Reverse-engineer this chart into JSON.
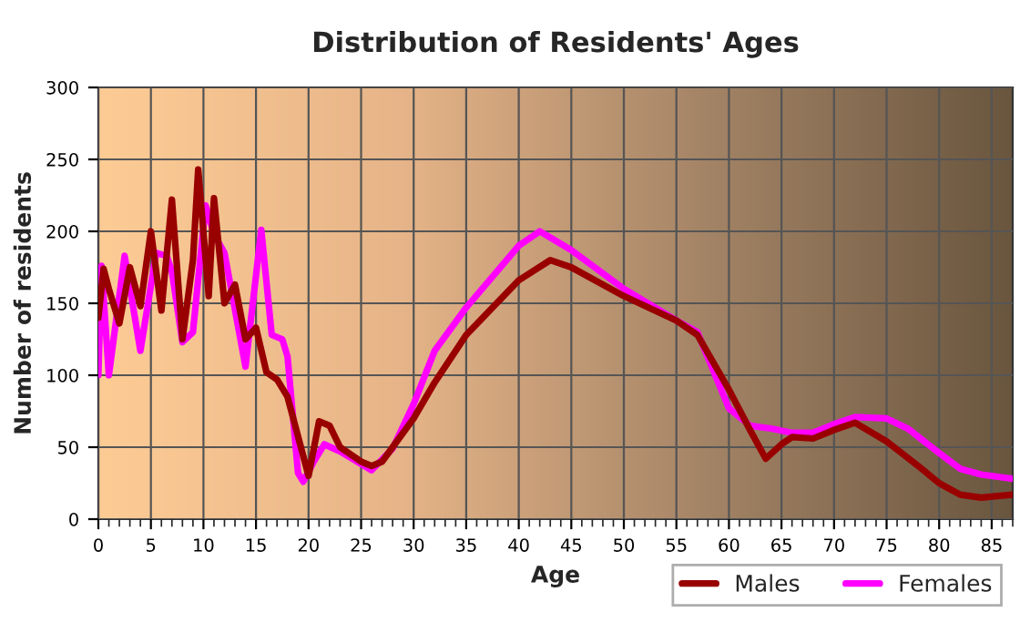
{
  "chart_data": {
    "type": "line",
    "title": "Distribution of Residents' Ages",
    "xlabel": "Age",
    "ylabel": "Number of residents",
    "xlim": [
      0,
      87
    ],
    "xticks": [
      0,
      5,
      10,
      15,
      20,
      25,
      30,
      35,
      40,
      45,
      50,
      55,
      60,
      65,
      70,
      75,
      80,
      85
    ],
    "ylim": [
      0,
      300
    ],
    "yticks": [
      0,
      50,
      100,
      150,
      200,
      250,
      300
    ],
    "grid": true,
    "legend": "bottom right",
    "line_style": "solid",
    "series": [
      {
        "name": "Males",
        "color": "#990000",
        "x": [
          0,
          0.5,
          1,
          2,
          3,
          4,
          5,
          6,
          7,
          8,
          9,
          9.5,
          10.5,
          11,
          12,
          13,
          14,
          15,
          16,
          17,
          18,
          20,
          21,
          22,
          23,
          25,
          26,
          27,
          28,
          30,
          32,
          35,
          40,
          43,
          45,
          50,
          55,
          57,
          60,
          62,
          63.5,
          65,
          66,
          68,
          70,
          72,
          75,
          78,
          80,
          82,
          84,
          87
        ],
        "values": [
          140,
          174,
          160,
          136,
          175,
          148,
          200,
          145,
          222,
          125,
          180,
          243,
          155,
          223,
          150,
          163,
          125,
          133,
          102,
          97,
          85,
          30,
          68,
          65,
          50,
          40,
          37,
          40,
          50,
          70,
          95,
          128,
          166,
          180,
          175,
          155,
          138,
          128,
          90,
          62,
          42,
          52,
          57,
          56,
          62,
          67,
          54,
          37,
          25,
          17,
          15,
          17
        ]
      },
      {
        "name": "Females",
        "color": "#ff00ff",
        "x": [
          0,
          0.3,
          1,
          2.5,
          4,
          5.5,
          6.5,
          7,
          8,
          9,
          10.2,
          11,
          12,
          14,
          15.5,
          16.5,
          17.5,
          18,
          19,
          19.5,
          20.5,
          21.5,
          23,
          26,
          28,
          30,
          32,
          35,
          40,
          42,
          45,
          50,
          55,
          57,
          60,
          62,
          64,
          66,
          68,
          70,
          72,
          75,
          77,
          80,
          82,
          84,
          87
        ],
        "values": [
          100,
          176,
          100,
          183,
          117,
          185,
          183,
          172,
          123,
          130,
          218,
          198,
          185,
          106,
          201,
          128,
          125,
          113,
          32,
          26,
          40,
          52,
          47,
          34,
          49,
          80,
          117,
          147,
          190,
          200,
          187,
          160,
          138,
          130,
          77,
          65,
          63,
          60,
          60,
          66,
          71,
          70,
          63,
          46,
          35,
          31,
          28
        ]
      }
    ]
  }
}
